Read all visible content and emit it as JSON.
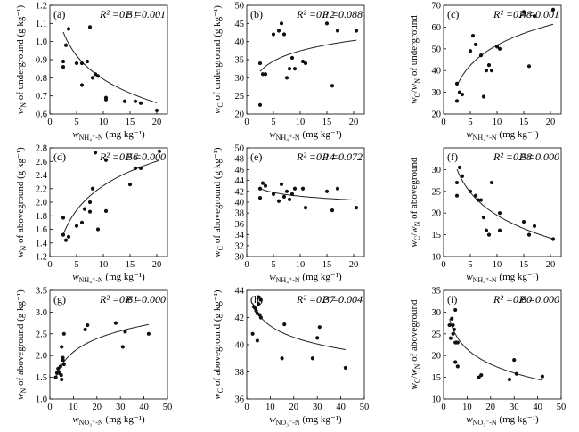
{
  "chart_data": [
    {
      "id": "a",
      "type": "scatter",
      "panel_label": "(a)",
      "stats": {
        "r2": "R² =0.51",
        "p": "P =0.001"
      },
      "ylabel": "w_N of underground (g kg⁻¹)",
      "xlabel": "w_NH4+-N (mg kg⁻¹)",
      "xlim": [
        0,
        22
      ],
      "ylim": [
        0.6,
        1.2
      ],
      "xticks": [
        "0",
        "5",
        "10",
        "15",
        "20"
      ],
      "yticks": [
        "0.6",
        "0.7",
        "0.8",
        "0.9",
        "1.0",
        "1.1",
        "1.2"
      ],
      "points": [
        [
          2.5,
          0.89
        ],
        [
          2.5,
          0.86
        ],
        [
          3.0,
          0.98
        ],
        [
          3.5,
          1.07
        ],
        [
          5,
          0.88
        ],
        [
          6,
          0.76
        ],
        [
          6,
          0.88
        ],
        [
          7,
          0.89
        ],
        [
          7.5,
          1.08
        ],
        [
          8,
          0.8
        ],
        [
          8.5,
          0.82
        ],
        [
          9,
          0.81
        ],
        [
          10.5,
          0.68
        ],
        [
          10.5,
          0.69
        ],
        [
          14,
          0.67
        ],
        [
          16,
          0.67
        ],
        [
          17,
          0.66
        ],
        [
          20,
          0.62
        ]
      ],
      "fit": {
        "form": "log",
        "a": 1.225,
        "b": -0.188
      }
    },
    {
      "id": "b",
      "type": "scatter",
      "panel_label": "(b)",
      "stats": {
        "r2": "R² =0.12",
        "p": "P =0.088"
      },
      "ylabel": "w_C of underground (g kg⁻¹)",
      "xlabel": "w_NH4+-N (mg kg⁻¹)",
      "xlim": [
        0,
        22
      ],
      "ylim": [
        20,
        50
      ],
      "xticks": [
        "0",
        "5",
        "10",
        "15",
        "20"
      ],
      "yticks": [
        "20",
        "25",
        "30",
        "35",
        "40",
        "45",
        "50"
      ],
      "points": [
        [
          2.5,
          22.5
        ],
        [
          2.5,
          34
        ],
        [
          3,
          31
        ],
        [
          3.5,
          31
        ],
        [
          5,
          42
        ],
        [
          6,
          43
        ],
        [
          6.5,
          45
        ],
        [
          7,
          42
        ],
        [
          7.5,
          30
        ],
        [
          8,
          32.5
        ],
        [
          8.5,
          35.5
        ],
        [
          9,
          32.5
        ],
        [
          10.5,
          34.5
        ],
        [
          11,
          34
        ],
        [
          15,
          45
        ],
        [
          16,
          27.8
        ],
        [
          17,
          43
        ],
        [
          20.5,
          43
        ]
      ],
      "fit": {
        "form": "log",
        "a": 28.0,
        "b": 4.1
      }
    },
    {
      "id": "c",
      "type": "scatter",
      "panel_label": "(c)",
      "stats": {
        "r2": "R² =0.48",
        "p": "P =0.001"
      },
      "ylabel": "w_C/w_N of underground",
      "xlabel": "w_NH4+-N (mg kg⁻¹)",
      "xlim": [
        0,
        22
      ],
      "ylim": [
        20,
        70
      ],
      "xticks": [
        "0",
        "5",
        "10",
        "15",
        "20"
      ],
      "yticks": [
        "20",
        "30",
        "40",
        "50",
        "60",
        "70"
      ],
      "points": [
        [
          2.5,
          34
        ],
        [
          2.5,
          26
        ],
        [
          3,
          30
        ],
        [
          3.5,
          29
        ],
        [
          5,
          49
        ],
        [
          5.5,
          56
        ],
        [
          6,
          52
        ],
        [
          7,
          47
        ],
        [
          7.5,
          28
        ],
        [
          8,
          40
        ],
        [
          8.5,
          42.5
        ],
        [
          9,
          40
        ],
        [
          10,
          51
        ],
        [
          10.5,
          50
        ],
        [
          15,
          67
        ],
        [
          16,
          42
        ],
        [
          17,
          65
        ],
        [
          20.5,
          68
        ]
      ],
      "fit": {
        "form": "log",
        "a": 20.8,
        "b": 13.4
      }
    },
    {
      "id": "d",
      "type": "scatter",
      "panel_label": "(d)",
      "stats": {
        "r2": "R² =0.56",
        "p": "P =0.000"
      },
      "ylabel": "w_N of aboveground (g kg⁻¹)",
      "xlabel": "w_NH4+-N (mg kg⁻¹)",
      "xlim": [
        0,
        22
      ],
      "ylim": [
        1.2,
        2.8
      ],
      "xticks": [
        "0",
        "5",
        "10",
        "15",
        "20"
      ],
      "yticks": [
        "1.2",
        "1.4",
        "1.6",
        "1.8",
        "2.0",
        "2.2",
        "2.4",
        "2.6",
        "2.8"
      ],
      "points": [
        [
          2.5,
          1.52
        ],
        [
          2.5,
          1.77
        ],
        [
          3,
          1.44
        ],
        [
          3.5,
          1.49
        ],
        [
          5,
          1.65
        ],
        [
          6,
          1.7
        ],
        [
          6.5,
          1.9
        ],
        [
          7.5,
          1.86
        ],
        [
          7.5,
          2.0
        ],
        [
          8,
          2.2
        ],
        [
          8.5,
          2.73
        ],
        [
          9,
          1.6
        ],
        [
          10.5,
          1.87
        ],
        [
          10.5,
          2.62
        ],
        [
          15,
          2.26
        ],
        [
          16,
          2.5
        ],
        [
          17,
          2.5
        ],
        [
          20.5,
          2.75
        ]
      ],
      "fit": {
        "form": "log",
        "a": 1.045,
        "b": 0.52
      }
    },
    {
      "id": "e",
      "type": "scatter",
      "panel_label": "(e)",
      "stats": {
        "r2": "R² =0.14",
        "p": "P =0.072"
      },
      "ylabel": "w_C of aboveground (g kg⁻¹)",
      "xlabel": "w_NH4+-N (mg kg⁻¹)",
      "xlim": [
        0,
        22
      ],
      "ylim": [
        30,
        50
      ],
      "xticks": [
        "0",
        "5",
        "10",
        "15",
        "20"
      ],
      "yticks": [
        "30",
        "32",
        "34",
        "36",
        "38",
        "40",
        "42",
        "44",
        "46",
        "48",
        "50"
      ],
      "points": [
        [
          2.5,
          42.5
        ],
        [
          2.5,
          40.8
        ],
        [
          3,
          43.5
        ],
        [
          3.5,
          43
        ],
        [
          5,
          41.5
        ],
        [
          6,
          40.2
        ],
        [
          6.5,
          43.3
        ],
        [
          7,
          41
        ],
        [
          7.5,
          42
        ],
        [
          8,
          40.5
        ],
        [
          8.5,
          41.5
        ],
        [
          9,
          42.5
        ],
        [
          10.5,
          42.5
        ],
        [
          11,
          39
        ],
        [
          15,
          42
        ],
        [
          16,
          38.5
        ],
        [
          17,
          42.5
        ],
        [
          20.5,
          39
        ]
      ],
      "fit": {
        "form": "log",
        "a": 43.4,
        "b": -1.0
      }
    },
    {
      "id": "f",
      "type": "scatter",
      "panel_label": "(f)",
      "stats": {
        "r2": "R² =0.58",
        "p": "P =0.000"
      },
      "ylabel": "w_C/w_N of aboveground",
      "xlabel": "w_NH4+-N (mg kg⁻¹)",
      "xlim": [
        0,
        22
      ],
      "ylim": [
        10,
        35
      ],
      "xticks": [
        "0",
        "5",
        "10",
        "15",
        "20"
      ],
      "yticks": [
        "10",
        "15",
        "20",
        "25",
        "30"
      ],
      "points": [
        [
          2.5,
          27
        ],
        [
          2.5,
          24
        ],
        [
          3,
          30.5
        ],
        [
          3.5,
          28.5
        ],
        [
          5,
          25
        ],
        [
          6,
          24
        ],
        [
          6.5,
          23
        ],
        [
          7,
          23
        ],
        [
          7.5,
          19
        ],
        [
          8,
          16
        ],
        [
          8.5,
          15
        ],
        [
          9,
          27
        ],
        [
          10.5,
          20
        ],
        [
          10.5,
          16
        ],
        [
          15,
          18
        ],
        [
          16,
          15
        ],
        [
          17,
          17
        ],
        [
          20.5,
          14
        ]
      ],
      "fit": {
        "form": "log",
        "a": 37.0,
        "b": -7.6
      }
    },
    {
      "id": "g",
      "type": "scatter",
      "panel_label": "(g)",
      "stats": {
        "r2": "R² =0.61",
        "p": "P =0.000"
      },
      "ylabel": "w_N of aboveground (g kg⁻¹)",
      "xlabel": "w_NO3--N (mg kg⁻¹)",
      "xlim": [
        0,
        50
      ],
      "ylim": [
        1.0,
        3.5
      ],
      "xticks": [
        "0",
        "10",
        "20",
        "30",
        "40",
        "50"
      ],
      "yticks": [
        "1.0",
        "1.5",
        "2.0",
        "2.5",
        "3.0",
        "3.5"
      ],
      "points": [
        [
          2.5,
          1.5
        ],
        [
          3,
          1.6
        ],
        [
          3.5,
          1.7
        ],
        [
          4,
          1.6
        ],
        [
          4.5,
          1.75
        ],
        [
          4.8,
          1.55
        ],
        [
          5,
          1.45
        ],
        [
          5.5,
          1.9
        ],
        [
          5.5,
          1.95
        ],
        [
          5,
          2.2
        ],
        [
          6,
          2.5
        ],
        [
          6,
          1.8
        ],
        [
          15,
          2.6
        ],
        [
          16,
          2.7
        ],
        [
          28,
          2.75
        ],
        [
          31,
          2.2
        ],
        [
          32,
          2.55
        ],
        [
          42,
          2.5
        ]
      ],
      "fit": {
        "form": "log",
        "a": 1.07,
        "b": 0.44
      }
    },
    {
      "id": "h",
      "type": "scatter",
      "panel_label": "(h)",
      "stats": {
        "r2": "R² =0.37",
        "p": "P =0.004"
      },
      "ylabel": "w_C of aboveground (g kg⁻¹)",
      "xlabel": "w_NO3--N (mg kg⁻¹)",
      "xlim": [
        0,
        50
      ],
      "ylim": [
        36,
        44
      ],
      "xticks": [
        "0",
        "10",
        "20",
        "30",
        "40",
        "50"
      ],
      "yticks": [
        "36",
        "38",
        "40",
        "42",
        "44"
      ],
      "points": [
        [
          2.5,
          40.8
        ],
        [
          3,
          42.8
        ],
        [
          3.5,
          42.7
        ],
        [
          4,
          42.5
        ],
        [
          4.5,
          42.3
        ],
        [
          4.5,
          40.3
        ],
        [
          5,
          43.5
        ],
        [
          5,
          43.0
        ],
        [
          5.5,
          42.2
        ],
        [
          6,
          43.3
        ],
        [
          6,
          42.0
        ],
        [
          15,
          39
        ],
        [
          16,
          41.5
        ],
        [
          28,
          39
        ],
        [
          30,
          40.5
        ],
        [
          31,
          41.3
        ],
        [
          42,
          38.3
        ]
      ],
      "fit": {
        "form": "log",
        "a": 44.2,
        "b": -1.22
      }
    },
    {
      "id": "i",
      "type": "scatter",
      "panel_label": "(i)",
      "stats": {
        "r2": "R² =0.60",
        "p": "P =0.000"
      },
      "ylabel": "w_C/w_N of aboveground",
      "xlabel": "w_NO3--N (mg kg⁻¹)",
      "xlim": [
        0,
        50
      ],
      "ylim": [
        10,
        35
      ],
      "xticks": [
        "0",
        "10",
        "20",
        "30",
        "40",
        "50"
      ],
      "yticks": [
        "10",
        "15",
        "20",
        "25",
        "30",
        "35"
      ],
      "points": [
        [
          2.5,
          27
        ],
        [
          3,
          24
        ],
        [
          3.5,
          28.5
        ],
        [
          4,
          27
        ],
        [
          4,
          25
        ],
        [
          4.5,
          26
        ],
        [
          5,
          30.5
        ],
        [
          5,
          23
        ],
        [
          5,
          18.5
        ],
        [
          5.5,
          23
        ],
        [
          6,
          23
        ],
        [
          6,
          17.5
        ],
        [
          15,
          15
        ],
        [
          16,
          15.5
        ],
        [
          28,
          14.5
        ],
        [
          30,
          19
        ],
        [
          31,
          15.8
        ],
        [
          42,
          15.2
        ]
      ],
      "fit": {
        "form": "log",
        "a": 33.0,
        "b": -5.0
      }
    }
  ]
}
